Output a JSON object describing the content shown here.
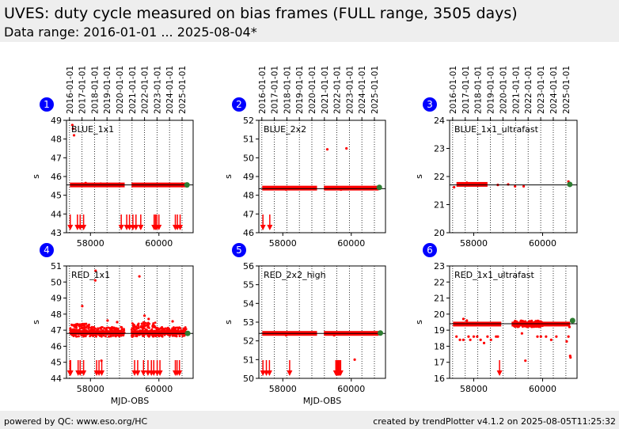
{
  "header": {
    "title": "UVES: duty cycle measured on bias frames (FULL range, 3505 days)",
    "subtitle": "Data range: 2016-01-01 ... 2025-08-04*"
  },
  "footer": {
    "left": "powered by QC: www.eso.org/HC",
    "right": "created by trendPlotter v4.1.2 on 2025-08-05T11:25:32"
  },
  "colors": {
    "data": "#ff0000",
    "latest": "#2e7d32",
    "badge": "#0000ff",
    "ref_line": "#000000"
  },
  "chart_data": [
    {
      "type": "scatter",
      "panel": 1,
      "label": "BLUE_1x1",
      "xlim": [
        57300,
        61000
      ],
      "ylim": [
        43,
        49
      ],
      "ylabel": "s",
      "xlabel": "",
      "yticks": [
        43,
        44,
        45,
        46,
        47,
        48,
        49
      ],
      "xticks": [
        58000,
        60000
      ],
      "ref_line": 45.55,
      "bands": [
        [
          57400,
          59000,
          45.55
        ],
        [
          59200,
          60800,
          45.55
        ]
      ],
      "points": [
        [
          57470,
          48.75
        ],
        [
          57490,
          48.55
        ],
        [
          57520,
          48.2
        ],
        [
          57860,
          45.65
        ],
        [
          58300,
          45.62
        ],
        [
          59600,
          45.6
        ]
      ],
      "last_point": [
        60820,
        45.55
      ],
      "arrows": [
        57410,
        57620,
        57700,
        57800,
        58900,
        59060,
        59140,
        59240,
        59330,
        59470,
        59860,
        59900,
        59940,
        60000,
        60480,
        60540,
        60620
      ]
    },
    {
      "type": "scatter",
      "panel": 2,
      "label": "BLUE_2x2",
      "xlim": [
        57300,
        61000
      ],
      "ylim": [
        46,
        52
      ],
      "ylabel": "s",
      "xlabel": "",
      "yticks": [
        46,
        47,
        48,
        49,
        50,
        51,
        52
      ],
      "xticks": [
        58000,
        60000
      ],
      "ref_line": 48.35,
      "bands": [
        [
          57400,
          59000,
          48.38
        ],
        [
          59200,
          60800,
          48.38
        ]
      ],
      "points": [
        [
          59300,
          50.45
        ],
        [
          59860,
          50.5
        ],
        [
          58100,
          48.3
        ],
        [
          59700,
          48.3
        ]
      ],
      "last_point": [
        60820,
        48.42
      ],
      "arrows": [
        57420,
        57620
      ]
    },
    {
      "type": "scatter",
      "panel": 3,
      "label": "BLUE_1x1_ultrafast",
      "xlim": [
        57300,
        61000
      ],
      "ylim": [
        20,
        24
      ],
      "ylabel": "s",
      "xlabel": "",
      "yticks": [
        20,
        21,
        22,
        23,
        24
      ],
      "xticks": [
        58000,
        60000
      ],
      "ref_line": 21.7,
      "bands": [
        [
          57500,
          58400,
          21.72
        ]
      ],
      "points": [
        [
          57430,
          21.62
        ],
        [
          57800,
          21.78
        ],
        [
          58700,
          21.7
        ],
        [
          59000,
          21.72
        ],
        [
          59200,
          21.65
        ],
        [
          59450,
          21.65
        ],
        [
          60750,
          21.82
        ]
      ],
      "last_point": [
        60790,
        21.72
      ],
      "arrows": []
    },
    {
      "type": "scatter",
      "panel": 4,
      "label": "RED_1x1",
      "xlim": [
        57300,
        61000
      ],
      "ylim": [
        44,
        51
      ],
      "ylabel": "s",
      "xlabel": "MJD-OBS",
      "yticks": [
        44,
        45,
        46,
        47,
        48,
        49,
        50,
        51
      ],
      "xticks": [
        58000,
        60000
      ],
      "ref_line": 46.8,
      "bands": [
        [
          57400,
          59000,
          46.85
        ],
        [
          59200,
          60800,
          46.85
        ]
      ],
      "scatter_ranges": [
        [
          57400,
          58000,
          46.6,
          47.4
        ],
        [
          58000,
          59000,
          46.6,
          47.2
        ],
        [
          59200,
          59900,
          46.6,
          47.5
        ],
        [
          59900,
          60800,
          46.6,
          47.2
        ]
      ],
      "points": [
        [
          58150,
          50.7
        ],
        [
          58140,
          50.1
        ],
        [
          57760,
          48.5
        ],
        [
          59430,
          50.35
        ],
        [
          59580,
          47.9
        ],
        [
          59700,
          47.7
        ],
        [
          58780,
          47.5
        ],
        [
          58500,
          47.6
        ],
        [
          60400,
          47.55
        ],
        [
          57950,
          47.3
        ],
        [
          58320,
          45.1
        ],
        [
          59220,
          46.6
        ]
      ],
      "last_point": [
        60840,
        46.8
      ],
      "arrows": [
        57400,
        57420,
        57640,
        57700,
        57800,
        58180,
        58250,
        58330,
        59290,
        59380,
        59550,
        59680,
        59780,
        59850,
        59950,
        60030,
        60480,
        60530,
        60600
      ]
    },
    {
      "type": "scatter",
      "panel": 5,
      "label": "RED_2x2_high",
      "xlim": [
        57300,
        61000
      ],
      "ylim": [
        50,
        56
      ],
      "ylabel": "s",
      "xlabel": "MJD-OBS",
      "yticks": [
        50,
        51,
        52,
        53,
        54,
        55,
        56
      ],
      "xticks": [
        58000,
        60000
      ],
      "ref_line": 52.4,
      "bands": [
        [
          57400,
          59000,
          52.4
        ],
        [
          59200,
          60800,
          52.4
        ]
      ],
      "points": [
        [
          60100,
          51.0
        ],
        [
          58100,
          52.3
        ],
        [
          59500,
          52.3
        ]
      ],
      "last_point": [
        60850,
        52.42
      ],
      "arrows": [
        57420,
        57520,
        57610,
        58200,
        59550,
        59580,
        59600,
        59620,
        59640,
        59660,
        59690
      ]
    },
    {
      "type": "scatter",
      "panel": 6,
      "label": "RED_1x1_ultrafast",
      "xlim": [
        57300,
        61000
      ],
      "ylim": [
        16,
        23
      ],
      "ylabel": "s",
      "xlabel": "",
      "yticks": [
        16,
        17,
        18,
        19,
        20,
        21,
        22,
        23
      ],
      "xticks": [
        58000,
        60000
      ],
      "ref_line": 19.4,
      "bands": [
        [
          57400,
          58800,
          19.38
        ],
        [
          59100,
          60800,
          19.38
        ]
      ],
      "scatter_ranges": [
        [
          59150,
          60000,
          19.2,
          19.6
        ]
      ],
      "points": [
        [
          57500,
          18.6
        ],
        [
          57600,
          18.4
        ],
        [
          57700,
          18.4
        ],
        [
          57850,
          18.6
        ],
        [
          57900,
          18.4
        ],
        [
          58000,
          18.6
        ],
        [
          58100,
          18.6
        ],
        [
          58200,
          18.4
        ],
        [
          58300,
          18.2
        ],
        [
          58400,
          18.6
        ],
        [
          58500,
          18.4
        ],
        [
          58650,
          18.6
        ],
        [
          58700,
          18.6
        ],
        [
          57700,
          19.7
        ],
        [
          57800,
          19.6
        ],
        [
          59400,
          18.8
        ],
        [
          59500,
          17.1
        ],
        [
          59850,
          18.6
        ],
        [
          59950,
          18.6
        ],
        [
          60100,
          18.6
        ],
        [
          60250,
          18.4
        ],
        [
          60400,
          18.6
        ],
        [
          60700,
          18.3
        ],
        [
          60750,
          18.6
        ],
        [
          60800,
          17.4
        ],
        [
          60810,
          17.3
        ],
        [
          60780,
          19.2
        ]
      ],
      "last_point": [
        60870,
        19.6
      ],
      "arrows": [
        58750
      ]
    }
  ],
  "time_axis": {
    "labels": [
      "2016-01-01",
      "2017-01-01",
      "2018-01-01",
      "2019-01-01",
      "2020-01-01",
      "2021-01-01",
      "2022-01-01",
      "2023-01-01",
      "2024-01-01",
      "2025-01-01"
    ],
    "mjd": [
      57388,
      57754,
      58119,
      58484,
      58849,
      59215,
      59580,
      59945,
      60310,
      60676
    ]
  }
}
